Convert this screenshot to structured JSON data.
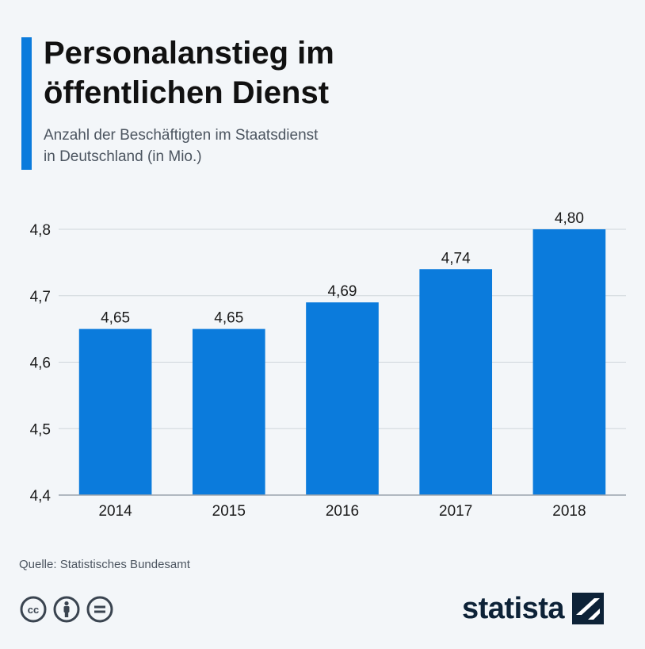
{
  "header": {
    "title": "Personalanstieg im\nöffentlichen Dienst",
    "subtitle": "Anzahl der Beschäftigten im Staatsdienst\nin Deutschland (in Mio.)"
  },
  "chart_data": {
    "type": "bar",
    "title": "Personalanstieg im öffentlichen Dienst",
    "subtitle": "Anzahl der Beschäftigten im Staatsdienst in Deutschland (in Mio.)",
    "categories": [
      "2014",
      "2015",
      "2016",
      "2017",
      "2018"
    ],
    "values": [
      4.65,
      4.65,
      4.69,
      4.74,
      4.8
    ],
    "value_labels": [
      "4,65",
      "4,65",
      "4,69",
      "4,74",
      "4,80"
    ],
    "ylim": [
      4.4,
      4.8
    ],
    "yticks": [
      4.4,
      4.5,
      4.6,
      4.7,
      4.8
    ],
    "ytick_labels": [
      "4,4",
      "4,5",
      "4,6",
      "4,7",
      "4,8"
    ],
    "xlabel": "",
    "ylabel": "",
    "grid": true,
    "bar_color": "#0b7bdc",
    "grid_color": "#cfd5db"
  },
  "footer": {
    "source": "Quelle: Statistisches Bundesamt",
    "license_icons": [
      "cc-icon",
      "attribution-person-icon",
      "no-derivatives-equals-icon"
    ],
    "brand": "statista"
  },
  "colors": {
    "accent": "#0b7bdc",
    "background": "#f3f6f9",
    "brand": "#0d2237"
  }
}
